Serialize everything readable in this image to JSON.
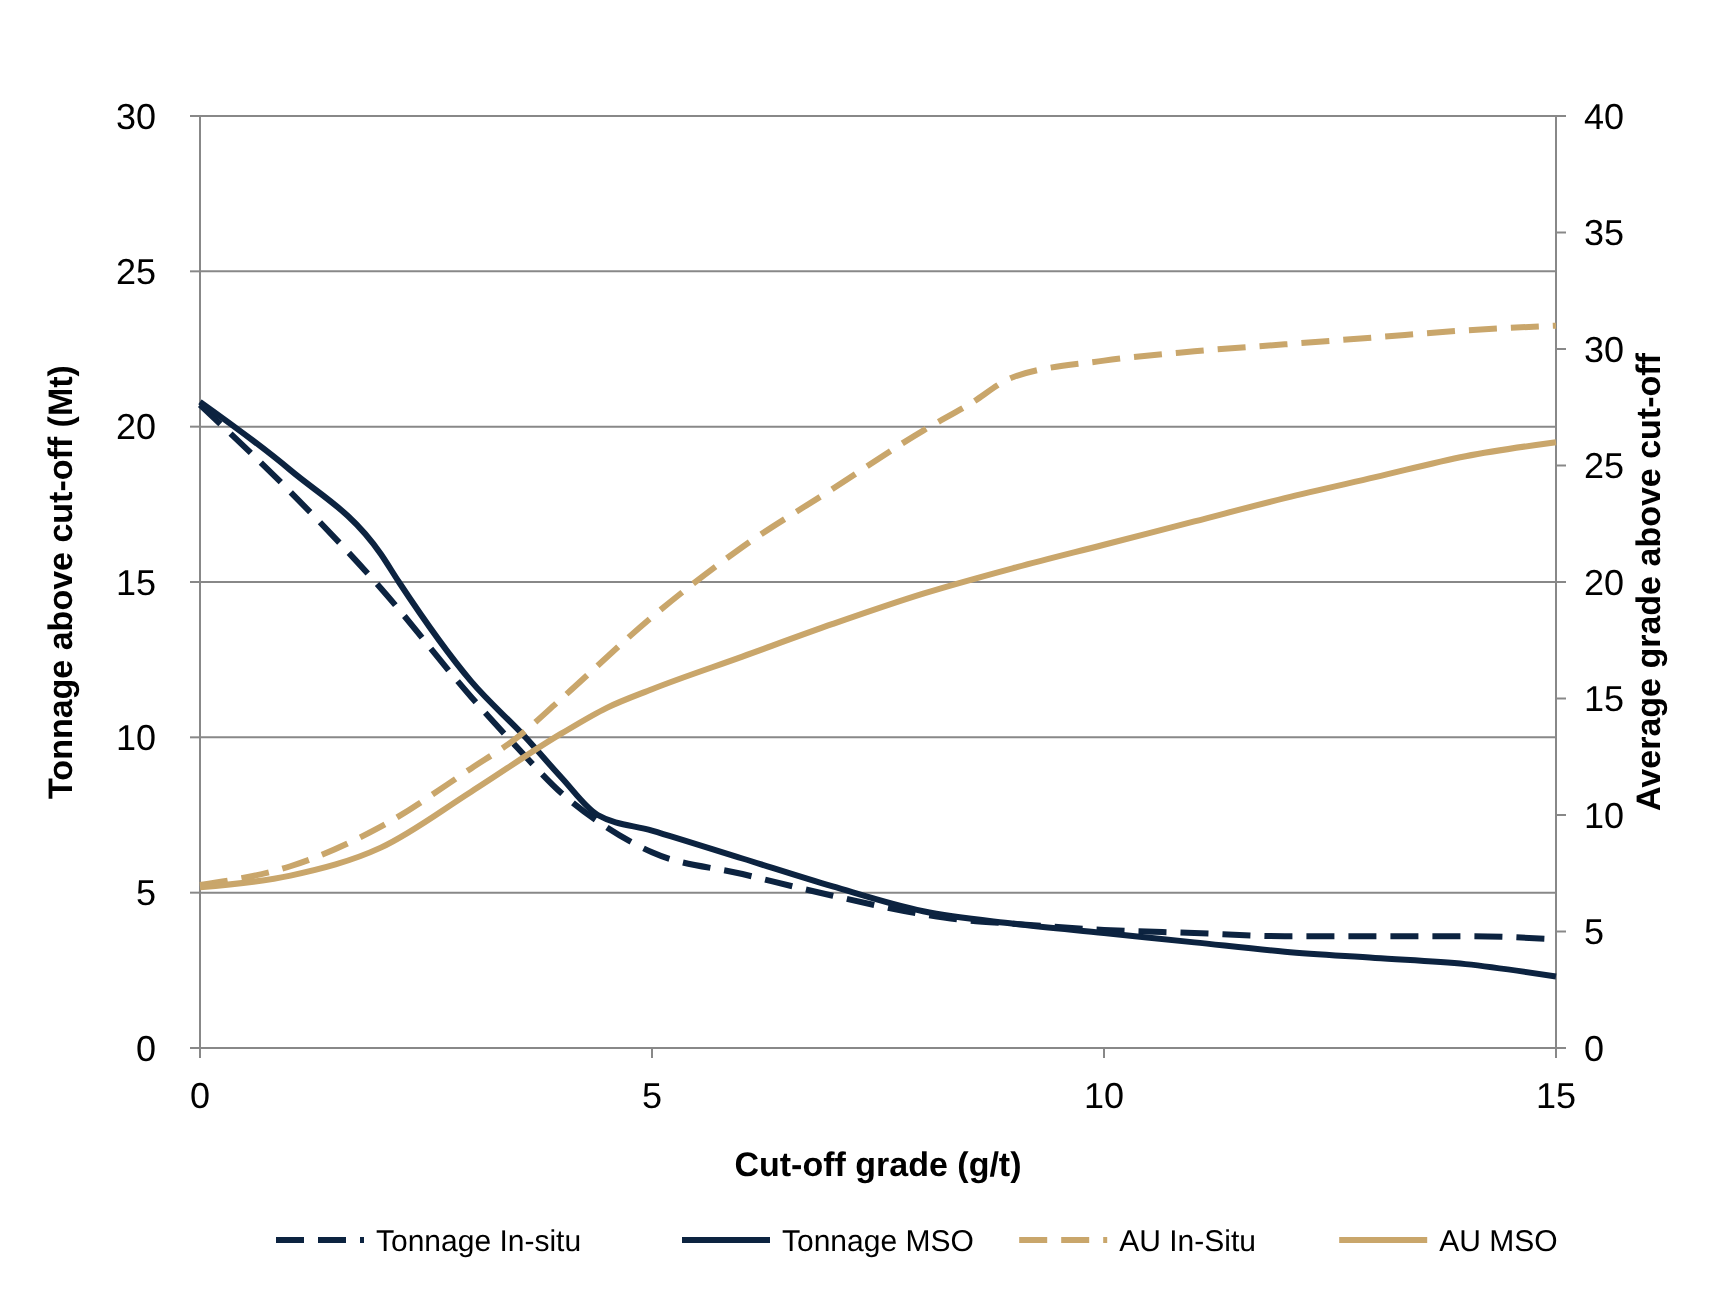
{
  "chart_data": {
    "type": "line",
    "xlabel": "Cut-off grade (g/t)",
    "ylabel": "Tonnage above cut-off (Mt)",
    "y2label": "Average grade above cut-off",
    "xlim": [
      0,
      15
    ],
    "xticks": [
      0,
      5,
      10,
      15
    ],
    "ylim": [
      0,
      30
    ],
    "yticks": [
      0,
      5,
      10,
      15,
      20,
      25,
      30
    ],
    "y2lim": [
      0,
      40
    ],
    "y2ticks": [
      0,
      5,
      10,
      15,
      20,
      25,
      30,
      35,
      40
    ],
    "grid": "y",
    "legend": "bottom",
    "series": [
      {
        "name": "Tonnage In-situ",
        "color": "#0c2340",
        "line_style": "dashed",
        "x": [
          0,
          1,
          2,
          3,
          3.5,
          4,
          4.5,
          5,
          6,
          7,
          8,
          8.5,
          9,
          10,
          11,
          12,
          13,
          14,
          15
        ],
        "values": [
          20.7,
          17.9,
          14.8,
          11.3,
          9.7,
          8.2,
          7.1,
          6.3,
          5.6,
          4.9,
          4.3,
          4.1,
          4,
          3.8,
          3.7,
          3.6,
          3.6,
          3.6,
          3.5
        ]
      },
      {
        "name": "Tonnage MSO",
        "color": "#0c2340",
        "line_style": "solid",
        "x": [
          0,
          1,
          2,
          2.2,
          3,
          3.6,
          4,
          4.4,
          5,
          6,
          7,
          8,
          9,
          10,
          11,
          12,
          13,
          14,
          15
        ],
        "values": [
          20.8,
          18.6,
          15.9,
          15,
          11.8,
          10,
          8.7,
          7.5,
          7,
          6.1,
          5.2,
          4.4,
          4,
          3.7,
          3.4,
          3.1,
          2.9,
          2.7,
          2.3
        ]
      },
      {
        "name": "AU In-Situ",
        "color": "#c9a66b",
        "line_style": "dashed",
        "axis": "y2",
        "x": [
          0,
          1,
          2,
          3,
          3.5,
          4,
          5,
          6,
          7,
          8,
          8.5,
          9,
          10,
          11,
          12,
          13,
          14,
          15
        ],
        "values": [
          7,
          7.8,
          9.5,
          12,
          13.3,
          15,
          18.5,
          21.5,
          24,
          26.5,
          27.6,
          28.8,
          29.5,
          29.9,
          30.2,
          30.5,
          30.8,
          31
        ]
      },
      {
        "name": "AU MSO",
        "color": "#c9a66b",
        "line_style": "solid",
        "axis": "y2",
        "x": [
          0,
          1,
          2,
          3,
          4,
          4.5,
          5,
          6,
          7,
          8,
          9,
          10,
          11,
          12,
          13,
          14,
          15
        ],
        "values": [
          6.9,
          7.4,
          8.6,
          11,
          13.5,
          14.6,
          15.4,
          16.8,
          18.2,
          19.5,
          20.6,
          21.6,
          22.6,
          23.6,
          24.5,
          25.4,
          26
        ]
      }
    ]
  }
}
